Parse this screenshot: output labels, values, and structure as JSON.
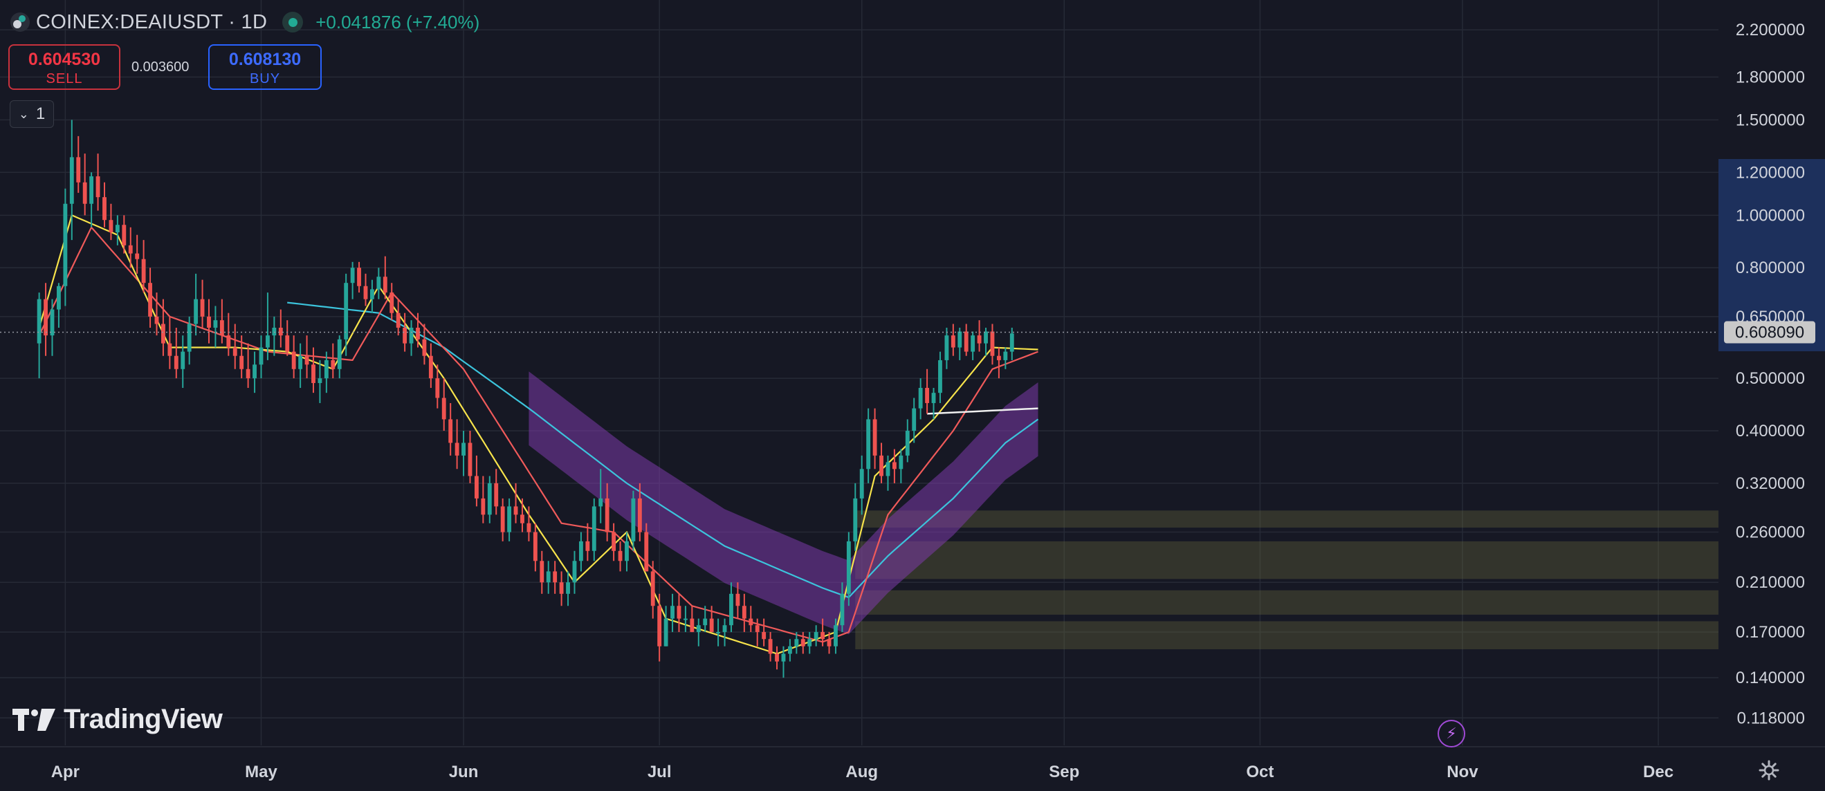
{
  "header": {
    "symbol": "COINEX:DEAIUSDT · 1D",
    "change": "+0.041876 (+7.40%)",
    "sell_price": "0.604530",
    "sell_label": "SELL",
    "spread": "0.003600",
    "buy_price": "0.608130",
    "buy_label": "BUY",
    "indicator_count": "1"
  },
  "branding": {
    "logo_text": "TradingView"
  },
  "colors": {
    "background": "#161824",
    "up": "#26a69a",
    "down": "#ef5350",
    "ema_fast": "#f7e34b",
    "ema_mid": "#f05a5a",
    "ema_slow": "#3cc4dc",
    "band": "#7b3aa8",
    "zones": "#6b6a3c",
    "price_tag": "#c9c9c9"
  },
  "icons": [
    "coinex-logo-icon",
    "live-status-icon",
    "chevron-down-icon",
    "tradingview-logo-icon",
    "lightning-icon",
    "gear-icon"
  ],
  "chart_data": {
    "type": "candlestick",
    "scale": "log",
    "current_price": "0.608090",
    "ylim": [
      0.105,
      2.3
    ],
    "y_ticks": [
      "2.200000",
      "1.800000",
      "1.500000",
      "1.200000",
      "1.000000",
      "0.800000",
      "0.650000",
      "0.500000",
      "0.400000",
      "0.320000",
      "0.260000",
      "0.210000",
      "0.170000",
      "0.140000",
      "0.118000"
    ],
    "y_tick_values": [
      2.2,
      1.8,
      1.5,
      1.2,
      1.0,
      0.8,
      0.65,
      0.5,
      0.4,
      0.32,
      0.26,
      0.21,
      0.17,
      0.14,
      0.118
    ],
    "x_ticks": [
      "Apr",
      "May",
      "Jun",
      "Jul",
      "Aug",
      "Sep",
      "Oct",
      "Nov",
      "Dec"
    ],
    "x_tick_dates": [
      "2024-04-01",
      "2024-05-01",
      "2024-06-01",
      "2024-07-01",
      "2024-08-01",
      "2024-09-01",
      "2024-10-01",
      "2024-11-01",
      "2024-12-01"
    ],
    "date_range": [
      "2024-03-22",
      "2024-12-10"
    ],
    "first_candle_date": "2024-03-28",
    "candles_ohlc": [
      [
        0.58,
        0.72,
        0.5,
        0.7
      ],
      [
        0.7,
        0.75,
        0.55,
        0.6
      ],
      [
        0.6,
        0.7,
        0.55,
        0.67
      ],
      [
        0.67,
        0.75,
        0.62,
        0.74
      ],
      [
        0.74,
        1.12,
        0.68,
        1.05
      ],
      [
        1.05,
        1.5,
        0.9,
        1.28
      ],
      [
        1.28,
        1.4,
        1.1,
        1.15
      ],
      [
        1.15,
        1.3,
        1.0,
        1.05
      ],
      [
        1.05,
        1.2,
        0.95,
        1.18
      ],
      [
        1.18,
        1.3,
        1.02,
        1.08
      ],
      [
        1.08,
        1.15,
        0.95,
        0.98
      ],
      [
        0.98,
        1.05,
        0.9,
        0.93
      ],
      [
        0.93,
        1.0,
        0.88,
        0.96
      ],
      [
        0.96,
        1.0,
        0.85,
        0.88
      ],
      [
        0.88,
        0.95,
        0.8,
        0.85
      ],
      [
        0.85,
        0.92,
        0.78,
        0.83
      ],
      [
        0.83,
        0.9,
        0.72,
        0.75
      ],
      [
        0.75,
        0.8,
        0.62,
        0.65
      ],
      [
        0.65,
        0.72,
        0.6,
        0.63
      ],
      [
        0.63,
        0.7,
        0.55,
        0.58
      ],
      [
        0.58,
        0.65,
        0.52,
        0.55
      ],
      [
        0.55,
        0.62,
        0.5,
        0.52
      ],
      [
        0.52,
        0.6,
        0.48,
        0.56
      ],
      [
        0.56,
        0.65,
        0.53,
        0.63
      ],
      [
        0.63,
        0.78,
        0.6,
        0.7
      ],
      [
        0.7,
        0.76,
        0.62,
        0.65
      ],
      [
        0.65,
        0.7,
        0.58,
        0.62
      ],
      [
        0.62,
        0.68,
        0.57,
        0.64
      ],
      [
        0.64,
        0.7,
        0.58,
        0.6
      ],
      [
        0.6,
        0.66,
        0.55,
        0.57
      ],
      [
        0.57,
        0.63,
        0.52,
        0.55
      ],
      [
        0.55,
        0.6,
        0.5,
        0.52
      ],
      [
        0.52,
        0.58,
        0.48,
        0.5
      ],
      [
        0.5,
        0.56,
        0.47,
        0.53
      ],
      [
        0.53,
        0.6,
        0.5,
        0.57
      ],
      [
        0.57,
        0.72,
        0.54,
        0.6
      ],
      [
        0.6,
        0.65,
        0.55,
        0.62
      ],
      [
        0.62,
        0.67,
        0.57,
        0.6
      ],
      [
        0.6,
        0.64,
        0.55,
        0.56
      ],
      [
        0.56,
        0.6,
        0.5,
        0.52
      ],
      [
        0.52,
        0.58,
        0.48,
        0.55
      ],
      [
        0.55,
        0.6,
        0.5,
        0.53
      ],
      [
        0.53,
        0.57,
        0.47,
        0.49
      ],
      [
        0.49,
        0.54,
        0.45,
        0.5
      ],
      [
        0.5,
        0.56,
        0.47,
        0.54
      ],
      [
        0.54,
        0.58,
        0.5,
        0.52
      ],
      [
        0.52,
        0.6,
        0.5,
        0.59
      ],
      [
        0.59,
        0.78,
        0.55,
        0.75
      ],
      [
        0.75,
        0.82,
        0.7,
        0.8
      ],
      [
        0.8,
        0.82,
        0.72,
        0.74
      ],
      [
        0.74,
        0.78,
        0.68,
        0.7
      ],
      [
        0.7,
        0.76,
        0.66,
        0.73
      ],
      [
        0.73,
        0.8,
        0.7,
        0.77
      ],
      [
        0.77,
        0.84,
        0.7,
        0.72
      ],
      [
        0.72,
        0.75,
        0.64,
        0.66
      ],
      [
        0.66,
        0.7,
        0.6,
        0.62
      ],
      [
        0.62,
        0.66,
        0.56,
        0.58
      ],
      [
        0.58,
        0.64,
        0.55,
        0.62
      ],
      [
        0.62,
        0.66,
        0.57,
        0.59
      ],
      [
        0.59,
        0.63,
        0.53,
        0.55
      ],
      [
        0.55,
        0.58,
        0.48,
        0.5
      ],
      [
        0.5,
        0.53,
        0.44,
        0.46
      ],
      [
        0.46,
        0.5,
        0.4,
        0.42
      ],
      [
        0.42,
        0.45,
        0.36,
        0.38
      ],
      [
        0.38,
        0.42,
        0.34,
        0.36
      ],
      [
        0.36,
        0.4,
        0.33,
        0.38
      ],
      [
        0.38,
        0.4,
        0.32,
        0.33
      ],
      [
        0.33,
        0.36,
        0.29,
        0.3
      ],
      [
        0.3,
        0.33,
        0.27,
        0.28
      ],
      [
        0.28,
        0.33,
        0.27,
        0.32
      ],
      [
        0.32,
        0.34,
        0.28,
        0.29
      ],
      [
        0.29,
        0.3,
        0.25,
        0.26
      ],
      [
        0.26,
        0.3,
        0.25,
        0.29
      ],
      [
        0.29,
        0.32,
        0.27,
        0.28
      ],
      [
        0.28,
        0.3,
        0.26,
        0.27
      ],
      [
        0.27,
        0.29,
        0.25,
        0.26
      ],
      [
        0.26,
        0.27,
        0.22,
        0.23
      ],
      [
        0.23,
        0.24,
        0.2,
        0.21
      ],
      [
        0.21,
        0.23,
        0.2,
        0.22
      ],
      [
        0.22,
        0.23,
        0.2,
        0.21
      ],
      [
        0.21,
        0.22,
        0.19,
        0.2
      ],
      [
        0.2,
        0.22,
        0.19,
        0.21
      ],
      [
        0.21,
        0.24,
        0.2,
        0.23
      ],
      [
        0.23,
        0.26,
        0.22,
        0.25
      ],
      [
        0.25,
        0.27,
        0.23,
        0.24
      ],
      [
        0.24,
        0.3,
        0.23,
        0.29
      ],
      [
        0.29,
        0.34,
        0.27,
        0.3
      ],
      [
        0.3,
        0.32,
        0.25,
        0.26
      ],
      [
        0.26,
        0.27,
        0.23,
        0.24
      ],
      [
        0.24,
        0.25,
        0.22,
        0.23
      ],
      [
        0.23,
        0.26,
        0.22,
        0.25
      ],
      [
        0.25,
        0.31,
        0.24,
        0.3
      ],
      [
        0.3,
        0.32,
        0.25,
        0.26
      ],
      [
        0.26,
        0.27,
        0.22,
        0.22
      ],
      [
        0.22,
        0.23,
        0.18,
        0.19
      ],
      [
        0.19,
        0.2,
        0.15,
        0.16
      ],
      [
        0.16,
        0.19,
        0.16,
        0.18
      ],
      [
        0.18,
        0.2,
        0.17,
        0.19
      ],
      [
        0.19,
        0.2,
        0.17,
        0.18
      ],
      [
        0.18,
        0.19,
        0.17,
        0.18
      ],
      [
        0.18,
        0.19,
        0.17,
        0.17
      ],
      [
        0.17,
        0.18,
        0.16,
        0.175
      ],
      [
        0.175,
        0.19,
        0.17,
        0.18
      ],
      [
        0.18,
        0.19,
        0.17,
        0.17
      ],
      [
        0.17,
        0.18,
        0.16,
        0.17
      ],
      [
        0.17,
        0.18,
        0.16,
        0.175
      ],
      [
        0.175,
        0.21,
        0.17,
        0.2
      ],
      [
        0.2,
        0.21,
        0.18,
        0.19
      ],
      [
        0.19,
        0.2,
        0.17,
        0.18
      ],
      [
        0.18,
        0.19,
        0.17,
        0.175
      ],
      [
        0.175,
        0.18,
        0.16,
        0.17
      ],
      [
        0.17,
        0.18,
        0.16,
        0.165
      ],
      [
        0.165,
        0.17,
        0.15,
        0.155
      ],
      [
        0.155,
        0.16,
        0.145,
        0.15
      ],
      [
        0.15,
        0.16,
        0.14,
        0.155
      ],
      [
        0.155,
        0.165,
        0.15,
        0.16
      ],
      [
        0.16,
        0.17,
        0.155,
        0.165
      ],
      [
        0.165,
        0.17,
        0.155,
        0.16
      ],
      [
        0.16,
        0.17,
        0.155,
        0.165
      ],
      [
        0.165,
        0.175,
        0.16,
        0.17
      ],
      [
        0.17,
        0.18,
        0.16,
        0.165
      ],
      [
        0.165,
        0.17,
        0.155,
        0.16
      ],
      [
        0.16,
        0.18,
        0.155,
        0.175
      ],
      [
        0.175,
        0.21,
        0.17,
        0.2
      ],
      [
        0.2,
        0.26,
        0.19,
        0.25
      ],
      [
        0.25,
        0.32,
        0.24,
        0.3
      ],
      [
        0.3,
        0.36,
        0.28,
        0.34
      ],
      [
        0.34,
        0.44,
        0.32,
        0.42
      ],
      [
        0.42,
        0.44,
        0.34,
        0.36
      ],
      [
        0.36,
        0.38,
        0.32,
        0.33
      ],
      [
        0.33,
        0.36,
        0.31,
        0.35
      ],
      [
        0.35,
        0.37,
        0.32,
        0.34
      ],
      [
        0.34,
        0.37,
        0.32,
        0.36
      ],
      [
        0.36,
        0.42,
        0.35,
        0.4
      ],
      [
        0.4,
        0.46,
        0.38,
        0.44
      ],
      [
        0.44,
        0.5,
        0.42,
        0.48
      ],
      [
        0.48,
        0.52,
        0.43,
        0.45
      ],
      [
        0.45,
        0.48,
        0.42,
        0.47
      ],
      [
        0.47,
        0.56,
        0.45,
        0.54
      ],
      [
        0.54,
        0.62,
        0.52,
        0.6
      ],
      [
        0.6,
        0.63,
        0.55,
        0.57
      ],
      [
        0.57,
        0.62,
        0.54,
        0.61
      ],
      [
        0.61,
        0.63,
        0.55,
        0.56
      ],
      [
        0.56,
        0.61,
        0.54,
        0.6
      ],
      [
        0.6,
        0.64,
        0.56,
        0.58
      ],
      [
        0.58,
        0.62,
        0.55,
        0.61
      ],
      [
        0.61,
        0.63,
        0.53,
        0.55
      ],
      [
        0.55,
        0.57,
        0.5,
        0.54
      ],
      [
        0.54,
        0.57,
        0.52,
        0.56
      ],
      [
        0.56,
        0.62,
        0.54,
        0.605
      ]
    ],
    "ema_fast_approx": [
      [
        0,
        0.62
      ],
      [
        5,
        1.0
      ],
      [
        12,
        0.92
      ],
      [
        20,
        0.57
      ],
      [
        30,
        0.57
      ],
      [
        38,
        0.56
      ],
      [
        45,
        0.52
      ],
      [
        52,
        0.74
      ],
      [
        62,
        0.5
      ],
      [
        75,
        0.28
      ],
      [
        82,
        0.21
      ],
      [
        90,
        0.26
      ],
      [
        96,
        0.18
      ],
      [
        113,
        0.155
      ],
      [
        122,
        0.17
      ],
      [
        128,
        0.33
      ],
      [
        137,
        0.42
      ],
      [
        146,
        0.57
      ],
      [
        153,
        0.565
      ]
    ],
    "ema_mid_approx": [
      [
        0,
        0.6
      ],
      [
        8,
        0.95
      ],
      [
        20,
        0.65
      ],
      [
        35,
        0.56
      ],
      [
        48,
        0.54
      ],
      [
        54,
        0.72
      ],
      [
        65,
        0.52
      ],
      [
        80,
        0.27
      ],
      [
        88,
        0.26
      ],
      [
        100,
        0.19
      ],
      [
        120,
        0.163
      ],
      [
        124,
        0.17
      ],
      [
        130,
        0.28
      ],
      [
        140,
        0.4
      ],
      [
        146,
        0.52
      ],
      [
        153,
        0.56
      ]
    ],
    "ema_slow_approx": [
      [
        38,
        0.69
      ],
      [
        52,
        0.66
      ],
      [
        62,
        0.57
      ],
      [
        75,
        0.44
      ],
      [
        90,
        0.32
      ],
      [
        105,
        0.245
      ],
      [
        120,
        0.205
      ],
      [
        124,
        0.197
      ],
      [
        130,
        0.235
      ],
      [
        140,
        0.3
      ],
      [
        148,
        0.38
      ],
      [
        153,
        0.42
      ]
    ],
    "baseline_white_approx": [
      [
        136,
        0.43
      ],
      [
        153,
        0.44
      ]
    ],
    "band_offset_ratio": 1.17,
    "band_start_index": 75,
    "zones": [
      [
        0.265,
        0.285
      ],
      [
        0.213,
        0.25
      ],
      [
        0.183,
        0.203
      ],
      [
        0.158,
        0.178
      ]
    ],
    "zones_start_index": 125
  }
}
